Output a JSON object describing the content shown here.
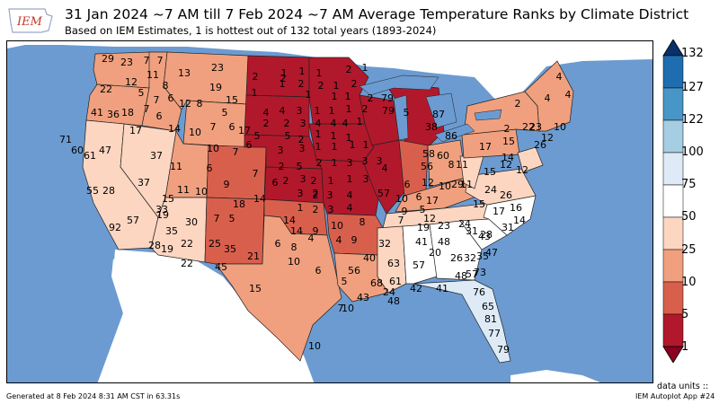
{
  "header": {
    "title": "31 Jan 2024 ~7 AM till 7 Feb 2024 ~7 AM Average Temperature Ranks by Climate District",
    "subtitle": "Based on IEM Estimates, 1 is hottest out of 132 total years (1893-2024)",
    "logo_text": "IEM"
  },
  "colorbar": {
    "labels": [
      "132",
      "127",
      "122",
      "100",
      "75",
      "50",
      "25",
      "10",
      "5",
      "1"
    ],
    "colors": [
      "#08306b",
      "#1f6db1",
      "#4896c8",
      "#a6cee3",
      "#deebf7",
      "#ffffff",
      "#fcd6c1",
      "#f0a07e",
      "#d95f4d",
      "#b2182b",
      "#8b0020"
    ],
    "units_label": "data units ::"
  },
  "map": {
    "ocean_color": "#6b9bd1",
    "land_color": "#ffffff",
    "ranks": [
      {
        "v": "29"
      },
      {
        "v": "23"
      },
      {
        "v": "7"
      },
      {
        "v": "7"
      },
      {
        "v": "13"
      },
      {
        "v": "23"
      },
      {
        "v": "22"
      },
      {
        "v": "12"
      },
      {
        "v": "5"
      },
      {
        "v": "11"
      },
      {
        "v": "8"
      },
      {
        "v": "7"
      },
      {
        "v": "19"
      },
      {
        "v": "6"
      },
      {
        "v": "15"
      },
      {
        "v": "12"
      },
      {
        "v": "8"
      },
      {
        "v": "5"
      },
      {
        "v": "41"
      },
      {
        "v": "36"
      },
      {
        "v": "18"
      },
      {
        "v": "7"
      },
      {
        "v": "6"
      },
      {
        "v": "17"
      },
      {
        "v": "14"
      },
      {
        "v": "10"
      },
      {
        "v": "7"
      },
      {
        "v": "6"
      },
      {
        "v": "17"
      },
      {
        "v": "71"
      },
      {
        "v": "60"
      },
      {
        "v": "61"
      },
      {
        "v": "47"
      },
      {
        "v": "37"
      },
      {
        "v": "11"
      },
      {
        "v": "10"
      },
      {
        "v": "7"
      },
      {
        "v": "6"
      },
      {
        "v": "5"
      },
      {
        "v": "6"
      },
      {
        "v": "55"
      },
      {
        "v": "28"
      },
      {
        "v": "37"
      },
      {
        "v": "11"
      },
      {
        "v": "10"
      },
      {
        "v": "9"
      },
      {
        "v": "7"
      },
      {
        "v": "6"
      },
      {
        "v": "15"
      },
      {
        "v": "18"
      },
      {
        "v": "14"
      },
      {
        "v": "57"
      },
      {
        "v": "33"
      },
      {
        "v": "19"
      },
      {
        "v": "30"
      },
      {
        "v": "7"
      },
      {
        "v": "5"
      },
      {
        "v": "92"
      },
      {
        "v": "35"
      },
      {
        "v": "28"
      },
      {
        "v": "19"
      },
      {
        "v": "22"
      },
      {
        "v": "25"
      },
      {
        "v": "35"
      },
      {
        "v": "21"
      },
      {
        "v": "22"
      },
      {
        "v": "45"
      },
      {
        "v": "15"
      },
      {
        "v": "2"
      },
      {
        "v": "2"
      },
      {
        "v": "1"
      },
      {
        "v": "1"
      },
      {
        "v": "1"
      },
      {
        "v": "2"
      },
      {
        "v": "1"
      },
      {
        "v": "1"
      },
      {
        "v": "2"
      },
      {
        "v": "2"
      },
      {
        "v": "1"
      },
      {
        "v": "2"
      },
      {
        "v": "1"
      },
      {
        "v": "1"
      },
      {
        "v": "1"
      },
      {
        "v": "1"
      },
      {
        "v": "2"
      },
      {
        "v": "4"
      },
      {
        "v": "4"
      },
      {
        "v": "3"
      },
      {
        "v": "1"
      },
      {
        "v": "1"
      },
      {
        "v": "1"
      },
      {
        "v": "2"
      },
      {
        "v": "2"
      },
      {
        "v": "3"
      },
      {
        "v": "2"
      },
      {
        "v": "4"
      },
      {
        "v": "4"
      },
      {
        "v": "4"
      },
      {
        "v": "1"
      },
      {
        "v": "1"
      },
      {
        "v": "1"
      },
      {
        "v": "1"
      },
      {
        "v": "2"
      },
      {
        "v": "5"
      },
      {
        "v": "3"
      },
      {
        "v": "3"
      },
      {
        "v": "1"
      },
      {
        "v": "1"
      },
      {
        "v": "1"
      },
      {
        "v": "1"
      },
      {
        "v": "2"
      },
      {
        "v": "5"
      },
      {
        "v": "2"
      },
      {
        "v": "1"
      },
      {
        "v": "3"
      },
      {
        "v": "3"
      },
      {
        "v": "3"
      },
      {
        "v": "4"
      },
      {
        "v": "2"
      },
      {
        "v": "3"
      },
      {
        "v": "2"
      },
      {
        "v": "1"
      },
      {
        "v": "1"
      },
      {
        "v": "3"
      },
      {
        "v": "3"
      },
      {
        "v": "2"
      },
      {
        "v": "3"
      },
      {
        "v": "4"
      },
      {
        "v": "1"
      },
      {
        "v": "2"
      },
      {
        "v": "3"
      },
      {
        "v": "2"
      },
      {
        "v": "4"
      },
      {
        "v": "4"
      },
      {
        "v": "4"
      },
      {
        "v": "2"
      },
      {
        "v": "4"
      },
      {
        "v": "2"
      },
      {
        "v": "22"
      },
      {
        "v": "23"
      },
      {
        "v": "10"
      },
      {
        "v": "17"
      },
      {
        "v": "15"
      },
      {
        "v": "12"
      },
      {
        "v": "11"
      },
      {
        "v": "26"
      },
      {
        "v": "12"
      },
      {
        "v": "15"
      },
      {
        "v": "14"
      },
      {
        "v": "12"
      },
      {
        "v": "11"
      },
      {
        "v": "24"
      },
      {
        "v": "26"
      },
      {
        "v": "15"
      },
      {
        "v": "17"
      },
      {
        "v": "14"
      },
      {
        "v": "16"
      },
      {
        "v": "31"
      },
      {
        "v": "43"
      },
      {
        "v": "29"
      },
      {
        "v": "38"
      },
      {
        "v": "57"
      },
      {
        "v": "58"
      },
      {
        "v": "60"
      },
      {
        "v": "56"
      },
      {
        "v": "8"
      },
      {
        "v": "10"
      },
      {
        "v": "6"
      },
      {
        "v": "10"
      },
      {
        "v": "17"
      },
      {
        "v": "12"
      },
      {
        "v": "9"
      },
      {
        "v": "5"
      },
      {
        "v": "12"
      },
      {
        "v": "7"
      },
      {
        "v": "6"
      },
      {
        "v": "14"
      },
      {
        "v": "14"
      },
      {
        "v": "9"
      },
      {
        "v": "10"
      },
      {
        "v": "8"
      },
      {
        "v": "4"
      },
      {
        "v": "4"
      },
      {
        "v": "6"
      },
      {
        "v": "8"
      },
      {
        "v": "9"
      },
      {
        "v": "10"
      },
      {
        "v": "6"
      },
      {
        "v": "5"
      },
      {
        "v": "10"
      },
      {
        "v": "7"
      },
      {
        "v": "10"
      },
      {
        "v": "19"
      },
      {
        "v": "23"
      },
      {
        "v": "24"
      },
      {
        "v": "31"
      },
      {
        "v": "28"
      },
      {
        "v": "32"
      },
      {
        "v": "40"
      },
      {
        "v": "41"
      },
      {
        "v": "48"
      },
      {
        "v": "20"
      },
      {
        "v": "26"
      },
      {
        "v": "32"
      },
      {
        "v": "35"
      },
      {
        "v": "47"
      },
      {
        "v": "57"
      },
      {
        "v": "63"
      },
      {
        "v": "56"
      },
      {
        "v": "68"
      },
      {
        "v": "61"
      },
      {
        "v": "43"
      },
      {
        "v": "24"
      },
      {
        "v": "48"
      },
      {
        "v": "42"
      },
      {
        "v": "41"
      },
      {
        "v": "48"
      },
      {
        "v": "57"
      },
      {
        "v": "73"
      },
      {
        "v": "76"
      },
      {
        "v": "65"
      },
      {
        "v": "81"
      },
      {
        "v": "77"
      },
      {
        "v": "79"
      },
      {
        "v": "79"
      },
      {
        "v": "87"
      },
      {
        "v": "86"
      },
      {
        "v": "79"
      },
      {
        "v": "5"
      },
      {
        "v": "6"
      },
      {
        "v": "6"
      },
      {
        "v": "2"
      },
      {
        "v": "2"
      }
    ]
  },
  "footer": {
    "left": "Generated at 8 Feb 2024 8:31 AM CST in 63.31s",
    "right": "IEM Autoplot App #24"
  }
}
